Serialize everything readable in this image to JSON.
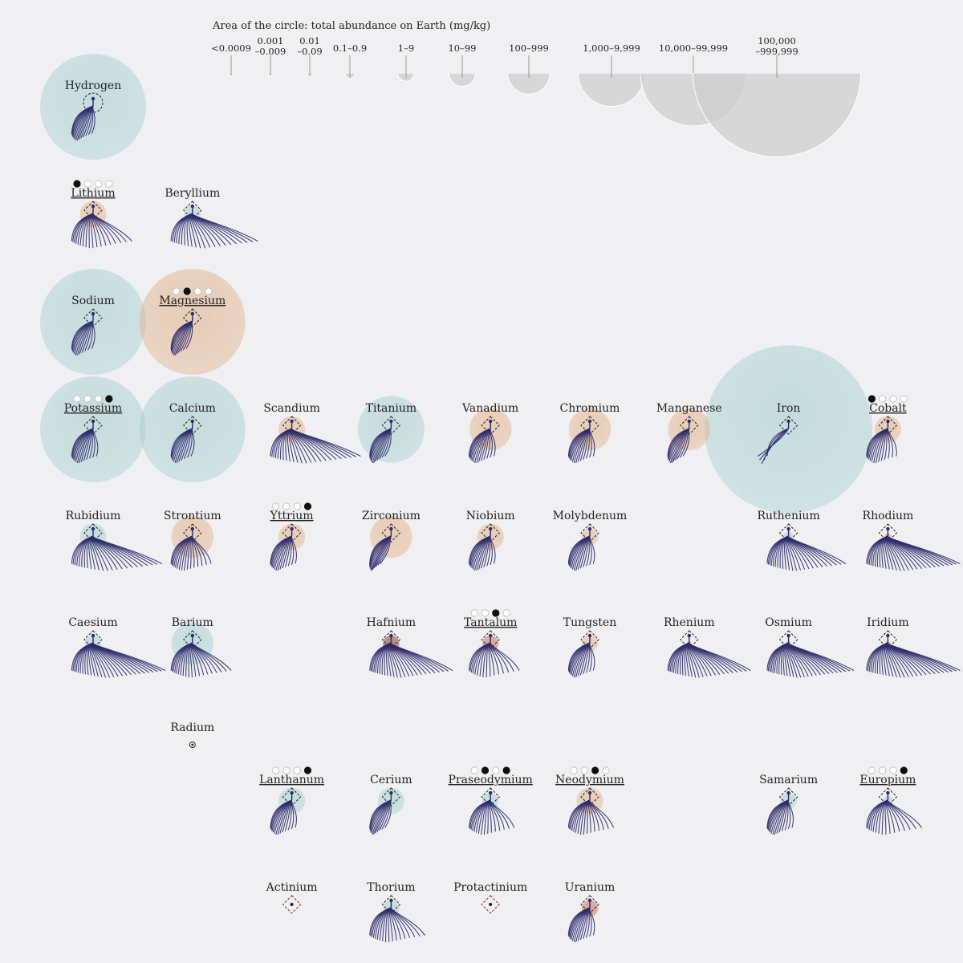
{
  "legend": {
    "title": "Area of the circle: total abundance on Earth (mg/kg)",
    "bins": [
      {
        "label": [
          "<0.0009"
        ],
        "value": 0.0009
      },
      {
        "label": [
          "0.001",
          "–0.009"
        ],
        "value": 0.009
      },
      {
        "label": [
          "0.01",
          "–0.09"
        ],
        "value": 0.09
      },
      {
        "label": [
          "0.1–0.9"
        ],
        "value": 0.9
      },
      {
        "label": [
          "1–9"
        ],
        "value": 9
      },
      {
        "label": [
          "10–99"
        ],
        "value": 99
      },
      {
        "label": [
          "100–999"
        ],
        "value": 999
      },
      {
        "label": [
          "1,000–9,999"
        ],
        "value": 9999
      },
      {
        "label": [
          "10,000–99,999"
        ],
        "value": 99999
      },
      {
        "label": [
          "100,000",
          "–999,999"
        ],
        "value": 999999
      }
    ]
  },
  "colors": {
    "background": "#f0f0f2",
    "teal": "#a9d0d0",
    "peach": "#e3b48f",
    "rust": "#c97060",
    "brown": "#8a3a28",
    "fan": "#2c2a6c",
    "legend": "#cfcfcf",
    "marker": "#8b2a1c"
  },
  "chart_data": {
    "type": "bubble",
    "size_encoding": "total abundance on Earth (mg/kg)",
    "elements": [
      {
        "name": "Hydrogen",
        "row": 1,
        "col": 1,
        "abundance": 99999,
        "color": "teal",
        "fan": 14,
        "spread": 50,
        "marker": "circle"
      },
      {
        "name": "Lithium",
        "row": 2,
        "col": 1,
        "abundance": 99,
        "color": "peach",
        "fan": 18,
        "spread": 90,
        "underline": true,
        "dots": [
          1,
          0,
          0,
          0
        ]
      },
      {
        "name": "Beryllium",
        "row": 2,
        "col": 2,
        "abundance": 9,
        "color": "teal",
        "fan": 22,
        "spread": 120
      },
      {
        "name": "Sodium",
        "row": 3,
        "col": 1,
        "abundance": 99999,
        "color": "teal",
        "fan": 12,
        "spread": 50
      },
      {
        "name": "Magnesium",
        "row": 3,
        "col": 2,
        "abundance": 99999,
        "color": "peach",
        "fan": 12,
        "spread": 45,
        "underline": true,
        "dots": [
          0,
          1,
          0,
          0
        ]
      },
      {
        "name": "Potassium",
        "row": 4,
        "col": 1,
        "abundance": 99999,
        "color": "teal",
        "fan": 14,
        "spread": 55,
        "underline": true,
        "dots": [
          0,
          0,
          0,
          1
        ]
      },
      {
        "name": "Calcium",
        "row": 4,
        "col": 2,
        "abundance": 99999,
        "color": "teal",
        "fan": 12,
        "spread": 50
      },
      {
        "name": "Scandium",
        "row": 4,
        "col": 3,
        "abundance": 99,
        "color": "peach",
        "fan": 24,
        "spread": 125
      },
      {
        "name": "Titanium",
        "row": 4,
        "col": 4,
        "abundance": 9999,
        "color": "teal",
        "fan": 12,
        "spread": 45
      },
      {
        "name": "Vanadium",
        "row": 4,
        "col": 5,
        "abundance": 999,
        "color": "peach",
        "fan": 14,
        "spread": 55
      },
      {
        "name": "Chromium",
        "row": 4,
        "col": 6,
        "abundance": 999,
        "color": "peach",
        "fan": 14,
        "spread": 55
      },
      {
        "name": "Manganese",
        "row": 4,
        "col": 7,
        "abundance": 999,
        "color": "peach",
        "fan": 12,
        "spread": 45
      },
      {
        "name": "Iron",
        "row": 4,
        "col": 8,
        "abundance": 999999,
        "color": "teal",
        "fan": 5,
        "spread": 15
      },
      {
        "name": "Cobalt",
        "row": 4,
        "col": 9,
        "abundance": 99,
        "color": "peach",
        "fan": 14,
        "spread": 60,
        "underline": true,
        "dots": [
          1,
          0,
          0,
          0
        ]
      },
      {
        "name": "Rubidium",
        "row": 5,
        "col": 1,
        "abundance": 99,
        "color": "teal",
        "fan": 24,
        "spread": 125
      },
      {
        "name": "Strontium",
        "row": 5,
        "col": 2,
        "abundance": 999,
        "color": "peach",
        "fan": 16,
        "spread": 70
      },
      {
        "name": "Yttrium",
        "row": 5,
        "col": 3,
        "abundance": 99,
        "color": "peach",
        "fan": 14,
        "spread": 55,
        "underline": true,
        "dots": [
          0,
          0,
          0,
          1
        ]
      },
      {
        "name": "Zirconium",
        "row": 5,
        "col": 4,
        "abundance": 999,
        "color": "peach",
        "fan": 12,
        "spread": 40
      },
      {
        "name": "Niobium",
        "row": 5,
        "col": 5,
        "abundance": 99,
        "color": "peach",
        "fan": 14,
        "spread": 55
      },
      {
        "name": "Molybdenum",
        "row": 5,
        "col": 6,
        "abundance": 9,
        "color": "peach",
        "fan": 14,
        "spread": 55
      },
      {
        "name": "Ruthenium",
        "row": 5,
        "col": 8,
        "abundance": 0.9,
        "color": "teal",
        "fan": 24,
        "spread": 110
      },
      {
        "name": "Rhodium",
        "row": 5,
        "col": 9,
        "abundance": 0.09,
        "color": "rust",
        "fan": 28,
        "spread": 130
      },
      {
        "name": "Caesium",
        "row": 6,
        "col": 1,
        "abundance": 9,
        "color": "teal",
        "fan": 28,
        "spread": 130
      },
      {
        "name": "Barium",
        "row": 6,
        "col": 2,
        "abundance": 999,
        "color": "teal",
        "fan": 20,
        "spread": 90
      },
      {
        "name": "Hafnium",
        "row": 6,
        "col": 4,
        "abundance": 9,
        "color": "brown",
        "fan": 26,
        "spread": 115
      },
      {
        "name": "Tantalum",
        "row": 6,
        "col": 5,
        "abundance": 9,
        "color": "rust",
        "fan": 16,
        "spread": 80,
        "underline": true,
        "dots": [
          0,
          0,
          1,
          0
        ]
      },
      {
        "name": "Tungsten",
        "row": 6,
        "col": 6,
        "abundance": 9,
        "color": "peach",
        "fan": 14,
        "spread": 55
      },
      {
        "name": "Rhenium",
        "row": 6,
        "col": 7,
        "abundance": 0.009,
        "color": "rust",
        "fan": 26,
        "spread": 115
      },
      {
        "name": "Osmium",
        "row": 6,
        "col": 8,
        "abundance": 0.009,
        "color": "rust",
        "fan": 28,
        "spread": 120
      },
      {
        "name": "Iridium",
        "row": 6,
        "col": 9,
        "abundance": 0.009,
        "color": "rust",
        "fan": 28,
        "spread": 130
      },
      {
        "name": "Radium",
        "row": 7,
        "col": 2,
        "abundance": 0.0001,
        "color": "teal",
        "fan": 0,
        "spread": 0,
        "marker": "none"
      },
      {
        "name": "Lanthanum",
        "row": 8,
        "col": 3,
        "abundance": 99,
        "color": "teal",
        "fan": 14,
        "spread": 55,
        "underline": true,
        "dots": [
          0,
          0,
          0,
          1
        ]
      },
      {
        "name": "Cerium",
        "row": 8,
        "col": 4,
        "abundance": 99,
        "color": "teal",
        "fan": 12,
        "spread": 45
      },
      {
        "name": "Praseodymium",
        "row": 8,
        "col": 5,
        "abundance": 9,
        "color": "teal",
        "fan": 16,
        "spread": 75,
        "underline": true,
        "dots": [
          0,
          1,
          0,
          1
        ]
      },
      {
        "name": "Neodymium",
        "row": 8,
        "col": 6,
        "abundance": 99,
        "color": "peach",
        "fan": 16,
        "spread": 75,
        "underline": true,
        "dots": [
          0,
          0,
          1,
          0
        ]
      },
      {
        "name": "Samarium",
        "row": 8,
        "col": 8,
        "abundance": 9,
        "color": "teal",
        "fan": 14,
        "spread": 55
      },
      {
        "name": "Europium",
        "row": 8,
        "col": 9,
        "abundance": 0.9,
        "color": "teal",
        "fan": 16,
        "spread": 85,
        "underline": true,
        "dots": [
          0,
          0,
          0,
          1
        ]
      },
      {
        "name": "Actinium",
        "row": 9,
        "col": 3,
        "abundance": 0.0001,
        "color": "rust",
        "fan": 0,
        "spread": 0,
        "marker": "diamond-dot"
      },
      {
        "name": "Thorium",
        "row": 9,
        "col": 4,
        "abundance": 9,
        "color": "teal",
        "fan": 18,
        "spread": 85
      },
      {
        "name": "Protactinium",
        "row": 9,
        "col": 5,
        "abundance": 0.0001,
        "color": "rust",
        "fan": 0,
        "spread": 0,
        "marker": "diamond-dot"
      },
      {
        "name": "Uranium",
        "row": 9,
        "col": 6,
        "abundance": 9,
        "color": "rust",
        "fan": 14,
        "spread": 55
      }
    ]
  }
}
